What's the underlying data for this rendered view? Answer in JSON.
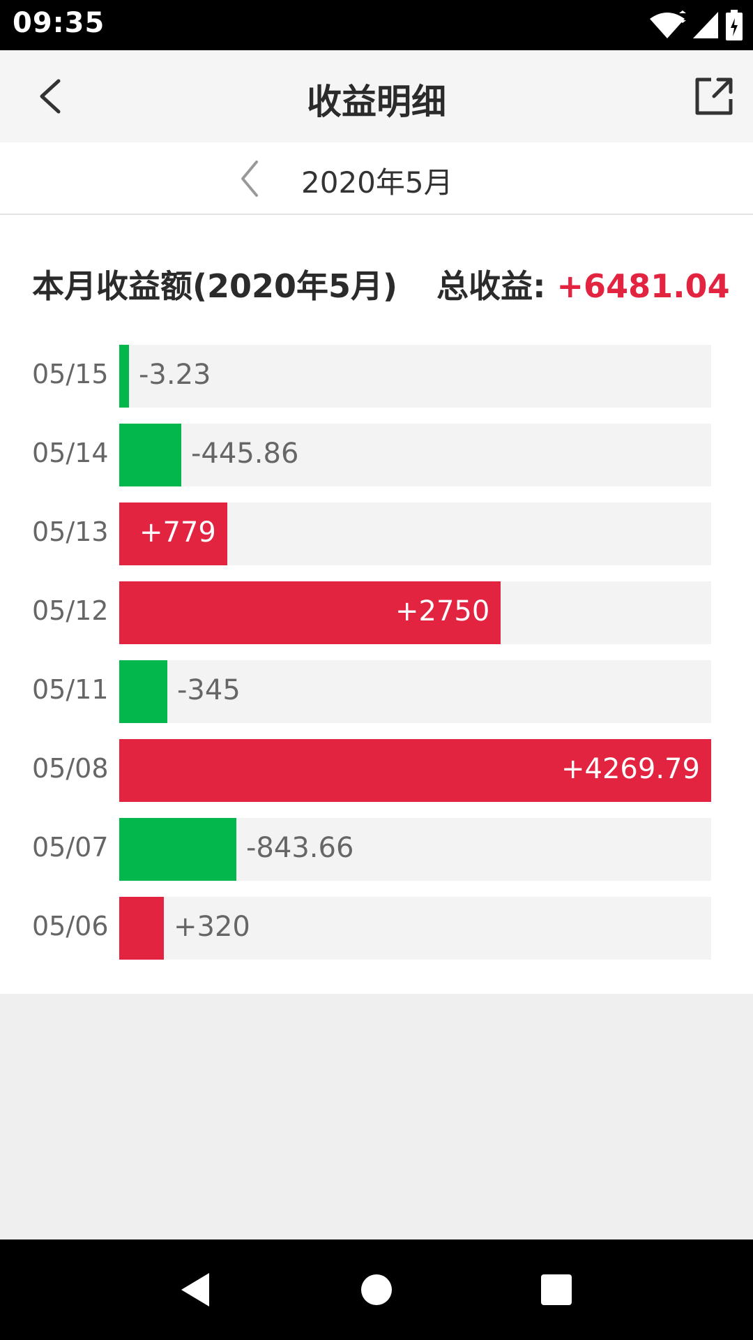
{
  "status_bar": {
    "time": "09:35",
    "icons": [
      "wifi-icon",
      "signal-icon",
      "battery-icon"
    ]
  },
  "app_bar": {
    "title": "收益明细",
    "back_icon": "back-arrow-icon",
    "share_icon": "share-icon"
  },
  "month_nav": {
    "prev_icon": "chevron-left-icon",
    "month": "2020年5月"
  },
  "summary": {
    "label": "本月收益额(2020年5月)",
    "total_label": "总收益:",
    "total_value": "+6481.04"
  },
  "colors": {
    "positive": "#e22440",
    "negative": "#03b74d",
    "track": "#f3f3f3"
  },
  "chart_data": {
    "type": "bar",
    "orientation": "horizontal",
    "categories": [
      "05/15",
      "05/14",
      "05/13",
      "05/12",
      "05/11",
      "05/08",
      "05/07",
      "05/06"
    ],
    "values": [
      -3.23,
      -445.86,
      779,
      2750,
      -345,
      4269.79,
      -843.66,
      320
    ],
    "labels": [
      "-3.23",
      "-445.86",
      "+779",
      "+2750",
      "-345",
      "+4269.79",
      "-843.66",
      "+320"
    ]
  },
  "nav_bar": {
    "buttons": [
      "nav-back-icon",
      "nav-home-icon",
      "nav-recents-icon"
    ]
  }
}
